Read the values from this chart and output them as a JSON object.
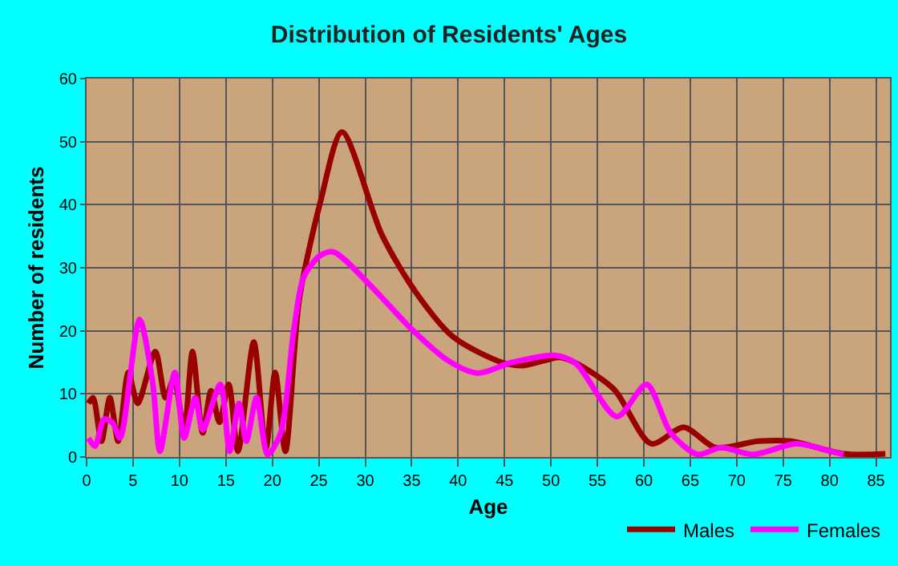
{
  "chart_data": {
    "type": "line",
    "title": "Distribution of Residents' Ages",
    "xlabel": "Age",
    "ylabel": "Number of residents",
    "xlim": [
      0,
      86.5
    ],
    "xticks": [
      0,
      5,
      10,
      15,
      20,
      25,
      30,
      35,
      40,
      45,
      50,
      55,
      60,
      65,
      70,
      75,
      80,
      85
    ],
    "ylim": [
      0,
      60
    ],
    "yticks": [
      0,
      10,
      20,
      30,
      40,
      50,
      60
    ],
    "grid": true,
    "legend": "bottom right",
    "marker": "none",
    "line_style": "solid",
    "series": [
      {
        "name": "Males",
        "color": "#990000",
        "x": [
          0.2,
          0.7,
          1.6,
          2.5,
          3.4,
          4.5,
          5.5,
          7.4,
          8.5,
          9.4,
          10.5,
          11.4,
          12.5,
          13.4,
          14.3,
          15.3,
          16.3,
          18,
          19.3,
          20.3,
          21.4,
          22.9,
          25.2,
          27.5,
          31.8,
          35.5,
          39.5,
          44.7,
          47,
          51,
          52.8,
          56.8,
          60.8,
          64.3,
          67.7,
          72.3,
          75.8,
          81.5,
          86
        ],
        "values": [
          8.5,
          9.4,
          2.5,
          9.4,
          2.5,
          13.4,
          8.5,
          16.7,
          9.4,
          12.4,
          4.3,
          16.7,
          3.8,
          10.5,
          5.5,
          11.5,
          0.9,
          18.2,
          1.3,
          13.4,
          0.9,
          25,
          40.6,
          51.5,
          35.2,
          26,
          19,
          15,
          14.5,
          15.8,
          14.8,
          10.7,
          2.1,
          4.7,
          1.5,
          2.5,
          2.5,
          0.5,
          0.5
        ]
      },
      {
        "name": "Females",
        "color": "#ff00ff",
        "x": [
          0.2,
          0.9,
          1.9,
          2.8,
          3.6,
          5.7,
          7.1,
          7.9,
          9.5,
          10.5,
          11.7,
          12.5,
          14.4,
          15.4,
          16.4,
          17.2,
          18.3,
          19.5,
          20.9,
          22.3,
          23.4,
          25.2,
          26.6,
          30.3,
          34.9,
          38.9,
          42.1,
          45.8,
          50.4,
          52.7,
          57.1,
          60.3,
          62.9,
          65.8,
          68.3,
          71.8,
          76.4,
          79.9,
          81.5
        ],
        "values": [
          3,
          1.7,
          6,
          5.4,
          3,
          21.8,
          12,
          0.9,
          13.4,
          3,
          9.4,
          4.3,
          11.5,
          0.9,
          8.5,
          2.5,
          9.4,
          0.4,
          3.8,
          20,
          28.6,
          32,
          32.5,
          27.6,
          20.4,
          15.3,
          13.3,
          15,
          16.1,
          14.8,
          6.4,
          11.5,
          3.8,
          0.4,
          1.5,
          0.4,
          2.1,
          1,
          0.4
        ]
      }
    ]
  }
}
